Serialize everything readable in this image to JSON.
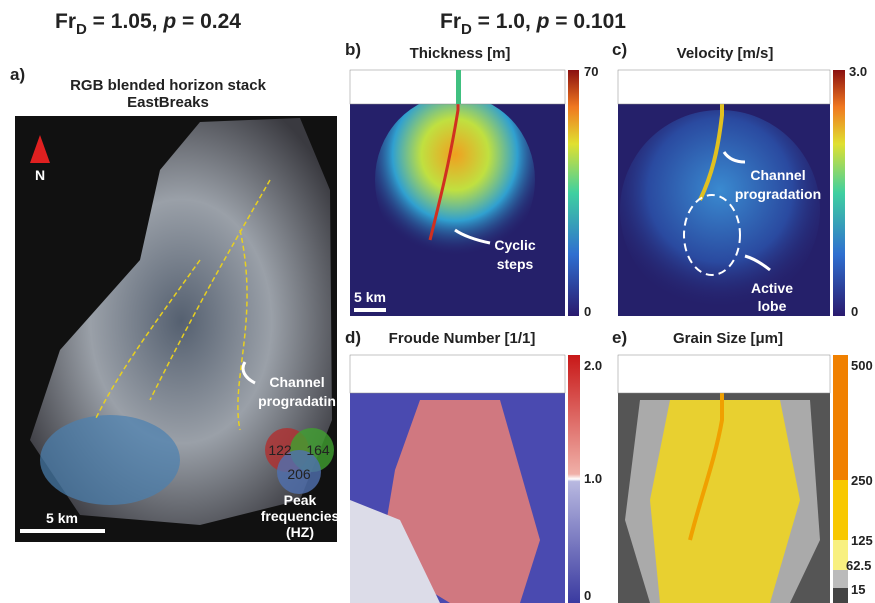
{
  "headers": {
    "left": {
      "fr": "Fr",
      "sub": "D",
      "mid": " = 1.05, ",
      "p": "p",
      "end": " = 0.24"
    },
    "right": {
      "fr": "Fr",
      "sub": "D",
      "mid": " = 1.0, ",
      "p": "p",
      "end": " = 0.101"
    }
  },
  "panel_a": {
    "label": "a)",
    "title": [
      "RGB blended horizon stack",
      "EastBreaks"
    ],
    "north": "N",
    "annotation": [
      "Channel",
      "progradatin"
    ],
    "venn": [
      "122",
      "164",
      "206"
    ],
    "legend": [
      "Peak",
      "frequencies",
      "(HZ)"
    ],
    "scale": "5 km"
  },
  "panel_b": {
    "label": "b)",
    "title": "Thickness [m]",
    "colorbar": [
      "70",
      "0"
    ],
    "annotation": [
      "Cyclic",
      "steps"
    ],
    "scale": "5 km"
  },
  "panel_c": {
    "label": "c)",
    "title": "Velocity [m/s]",
    "colorbar": [
      "3.0",
      "0"
    ],
    "annotation_1": [
      "Channel",
      "progradation"
    ],
    "annotation_2": [
      "Active",
      "lobe"
    ]
  },
  "panel_d": {
    "label": "d)",
    "title": "Froude Number [1/1]",
    "colorbar": [
      "2.0",
      "1.0",
      "0"
    ]
  },
  "panel_e": {
    "label": "e)",
    "title": "Grain Size [μm]",
    "colorbar": [
      "500",
      "250",
      "125",
      "62.5",
      "15"
    ]
  }
}
